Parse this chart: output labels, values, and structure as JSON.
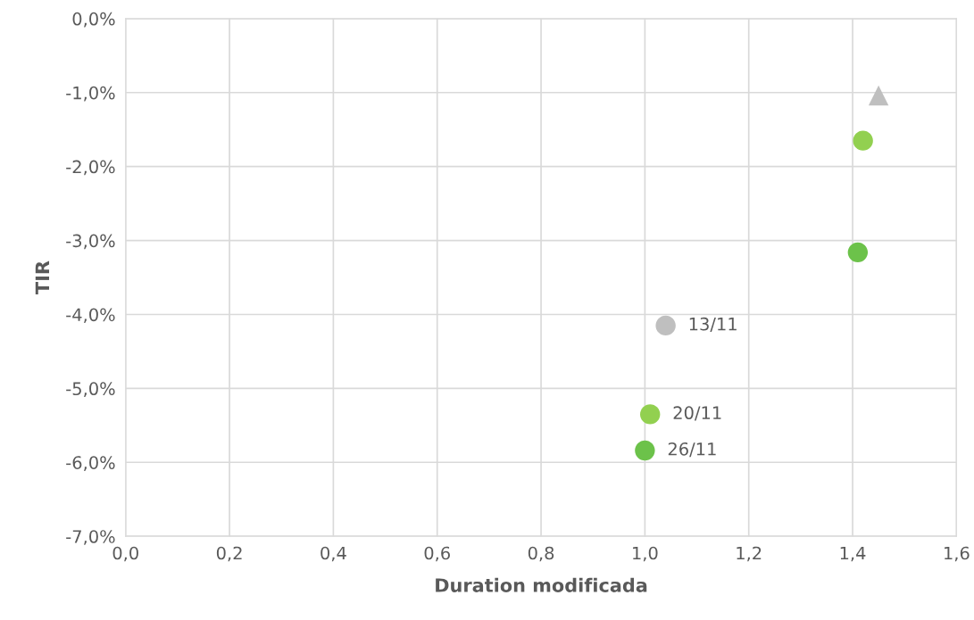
{
  "chart_data": {
    "type": "scatter",
    "xlabel": "Duration modificada",
    "ylabel": "TIR",
    "series": [
      {
        "color": "#bfbfbf",
        "marker": "circle",
        "x": [
          1.04
        ],
        "values": [
          -4.15
        ]
      },
      {
        "color": "#bfbfbf",
        "marker": "triangle",
        "x": [
          1.45
        ],
        "values": [
          -1.04
        ]
      },
      {
        "color": "#92d050",
        "marker": "circle",
        "x": [
          1.42,
          1.01
        ],
        "values": [
          -1.65,
          -5.35
        ]
      },
      {
        "color": "#6cc24a",
        "marker": "circle",
        "x": [
          1.41,
          1.0
        ],
        "values": [
          -3.16,
          -5.84
        ]
      }
    ],
    "annotations": [
      {
        "text": "13/11",
        "x": 1.04,
        "y": -4.15
      },
      {
        "text": "20/11",
        "x": 1.01,
        "y": -5.35
      },
      {
        "text": "26/11",
        "x": 1.0,
        "y": -5.84
      }
    ],
    "xlim": [
      0,
      1.6
    ],
    "xticks": [
      {
        "value": 0,
        "label": "0,0"
      },
      {
        "value": 0.2,
        "label": "0,2"
      },
      {
        "value": 0.4,
        "label": "0,4"
      },
      {
        "value": 0.6,
        "label": "0,6"
      },
      {
        "value": 0.8,
        "label": "0,8"
      },
      {
        "value": 1.0,
        "label": "1,0"
      },
      {
        "value": 1.2,
        "label": "1,2"
      },
      {
        "value": 1.4,
        "label": "1,4"
      },
      {
        "value": 1.6,
        "label": "1,6"
      }
    ],
    "ylim": [
      -7,
      0
    ],
    "yticks": [
      {
        "value": 0,
        "label": "0,0%"
      },
      {
        "value": -1,
        "label": "-1,0%"
      },
      {
        "value": -2,
        "label": "-2,0%"
      },
      {
        "value": -3,
        "label": "-3,0%"
      },
      {
        "value": -4,
        "label": "-4,0%"
      },
      {
        "value": -5,
        "label": "-5,0%"
      },
      {
        "value": -6,
        "label": "-6,0%"
      },
      {
        "value": -7,
        "label": "-7,0%"
      }
    ],
    "grid": true
  }
}
